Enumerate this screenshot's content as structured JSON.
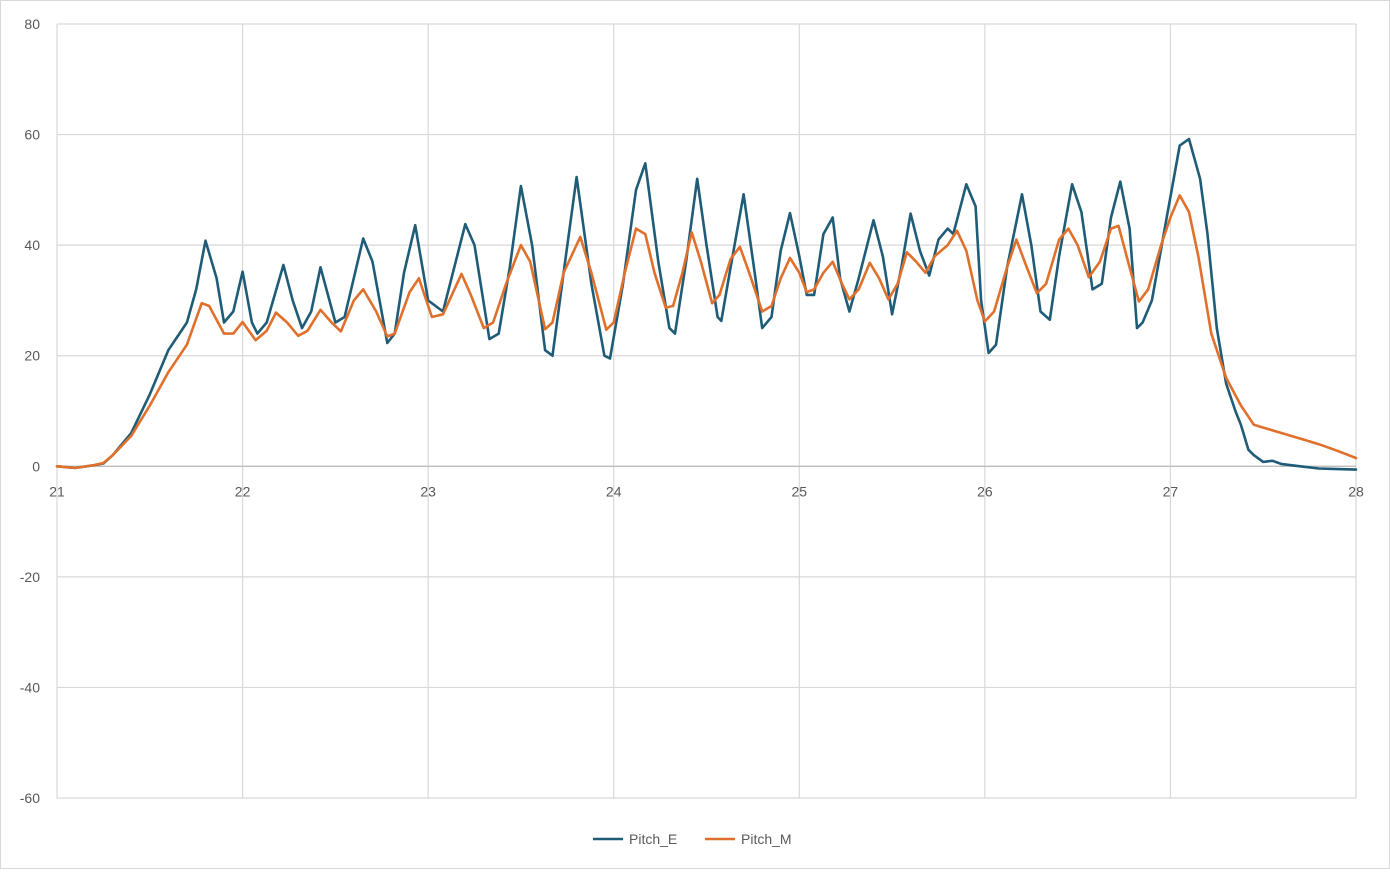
{
  "chart_data": {
    "type": "line",
    "title": "",
    "xlabel": "",
    "ylabel": "",
    "xlim": [
      21,
      28
    ],
    "ylim": [
      -60,
      80
    ],
    "x_ticks": [
      21,
      22,
      23,
      24,
      25,
      26,
      27,
      28
    ],
    "y_ticks": [
      80,
      60,
      40,
      20,
      0,
      -20,
      -40,
      -60
    ],
    "grid": true,
    "legend": "bottom-center",
    "series": [
      {
        "name": "Pitch_E",
        "color": "#1f5c77",
        "points": [
          [
            21.0,
            0
          ],
          [
            21.1,
            -0.3
          ],
          [
            21.2,
            0.2
          ],
          [
            21.25,
            0.5
          ],
          [
            21.3,
            2
          ],
          [
            21.4,
            6
          ],
          [
            21.5,
            13
          ],
          [
            21.6,
            21
          ],
          [
            21.7,
            26
          ],
          [
            21.75,
            32
          ],
          [
            21.8,
            40.8
          ],
          [
            21.86,
            34
          ],
          [
            21.9,
            26
          ],
          [
            21.95,
            28
          ],
          [
            22.0,
            35.2
          ],
          [
            22.05,
            26
          ],
          [
            22.08,
            24
          ],
          [
            22.13,
            26
          ],
          [
            22.22,
            36.4
          ],
          [
            22.27,
            30
          ],
          [
            22.32,
            25
          ],
          [
            22.37,
            28
          ],
          [
            22.42,
            36
          ],
          [
            22.5,
            26
          ],
          [
            22.55,
            27
          ],
          [
            22.65,
            41.2
          ],
          [
            22.7,
            37
          ],
          [
            22.78,
            22.3
          ],
          [
            22.82,
            24
          ],
          [
            22.87,
            35
          ],
          [
            22.93,
            43.6
          ],
          [
            23.0,
            30
          ],
          [
            23.08,
            28
          ],
          [
            23.2,
            43.8
          ],
          [
            23.25,
            40
          ],
          [
            23.33,
            23
          ],
          [
            23.38,
            24
          ],
          [
            23.44,
            36
          ],
          [
            23.5,
            50.7
          ],
          [
            23.56,
            40
          ],
          [
            23.63,
            21
          ],
          [
            23.67,
            20
          ],
          [
            23.73,
            35
          ],
          [
            23.8,
            52.3
          ],
          [
            23.88,
            33
          ],
          [
            23.95,
            20
          ],
          [
            23.98,
            19.5
          ],
          [
            24.05,
            33
          ],
          [
            24.12,
            50
          ],
          [
            24.17,
            54.8
          ],
          [
            24.24,
            37
          ],
          [
            24.3,
            25
          ],
          [
            24.33,
            24
          ],
          [
            24.39,
            37
          ],
          [
            24.45,
            52
          ],
          [
            24.5,
            40
          ],
          [
            24.56,
            27
          ],
          [
            24.58,
            26.3
          ],
          [
            24.63,
            36
          ],
          [
            24.7,
            49.2
          ],
          [
            24.76,
            35
          ],
          [
            24.8,
            25
          ],
          [
            24.85,
            27
          ],
          [
            24.9,
            39
          ],
          [
            24.95,
            45.8
          ],
          [
            25.0,
            38
          ],
          [
            25.04,
            31
          ],
          [
            25.08,
            31
          ],
          [
            25.13,
            42
          ],
          [
            25.18,
            45
          ],
          [
            25.22,
            34
          ],
          [
            25.27,
            28
          ],
          [
            25.32,
            34
          ],
          [
            25.4,
            44.5
          ],
          [
            25.45,
            38
          ],
          [
            25.5,
            27.5
          ],
          [
            25.55,
            36
          ],
          [
            25.6,
            45.7
          ],
          [
            25.65,
            39
          ],
          [
            25.7,
            34.5
          ],
          [
            25.75,
            41
          ],
          [
            25.8,
            43
          ],
          [
            25.83,
            42
          ],
          [
            25.9,
            51
          ],
          [
            25.95,
            47
          ],
          [
            25.98,
            30
          ],
          [
            26.02,
            20.5
          ],
          [
            26.06,
            22
          ],
          [
            26.12,
            36
          ],
          [
            26.2,
            49.2
          ],
          [
            26.25,
            40
          ],
          [
            26.3,
            28
          ],
          [
            26.35,
            26.5
          ],
          [
            26.4,
            38
          ],
          [
            26.47,
            51
          ],
          [
            26.52,
            46
          ],
          [
            26.58,
            32
          ],
          [
            26.63,
            33
          ],
          [
            26.68,
            45
          ],
          [
            26.73,
            51.5
          ],
          [
            26.78,
            43
          ],
          [
            26.82,
            25
          ],
          [
            26.85,
            26
          ],
          [
            26.9,
            30
          ],
          [
            26.98,
            45
          ],
          [
            27.05,
            58
          ],
          [
            27.1,
            59.2
          ],
          [
            27.16,
            52
          ],
          [
            27.2,
            42
          ],
          [
            27.25,
            25
          ],
          [
            27.3,
            15
          ],
          [
            27.35,
            10
          ],
          [
            27.38,
            7.5
          ],
          [
            27.42,
            3
          ],
          [
            27.45,
            2
          ],
          [
            27.5,
            0.8
          ],
          [
            27.55,
            1
          ],
          [
            27.6,
            0.4
          ],
          [
            27.7,
            0
          ],
          [
            27.8,
            -0.4
          ],
          [
            27.9,
            -0.5
          ],
          [
            28.0,
            -0.6
          ]
        ]
      },
      {
        "name": "Pitch_M",
        "color": "#e0702c",
        "points": [
          [
            21.0,
            0
          ],
          [
            21.1,
            -0.3
          ],
          [
            21.2,
            0.2
          ],
          [
            21.25,
            0.6
          ],
          [
            21.3,
            2
          ],
          [
            21.4,
            5.5
          ],
          [
            21.5,
            11
          ],
          [
            21.6,
            17
          ],
          [
            21.7,
            22
          ],
          [
            21.78,
            29.5
          ],
          [
            21.82,
            29
          ],
          [
            21.9,
            24
          ],
          [
            21.95,
            24
          ],
          [
            22.0,
            26.1
          ],
          [
            22.07,
            22.8
          ],
          [
            22.13,
            24.5
          ],
          [
            22.18,
            27.8
          ],
          [
            22.24,
            26
          ],
          [
            22.3,
            23.6
          ],
          [
            22.35,
            24.5
          ],
          [
            22.42,
            28.3
          ],
          [
            22.48,
            26
          ],
          [
            22.53,
            24.4
          ],
          [
            22.6,
            30
          ],
          [
            22.65,
            32
          ],
          [
            22.72,
            28
          ],
          [
            22.78,
            23.5
          ],
          [
            22.82,
            24
          ],
          [
            22.9,
            31.5
          ],
          [
            22.95,
            34
          ],
          [
            23.02,
            27
          ],
          [
            23.08,
            27.5
          ],
          [
            23.18,
            34.8
          ],
          [
            23.23,
            31
          ],
          [
            23.3,
            25
          ],
          [
            23.35,
            26
          ],
          [
            23.42,
            33
          ],
          [
            23.5,
            40
          ],
          [
            23.55,
            37
          ],
          [
            23.63,
            24.8
          ],
          [
            23.67,
            26
          ],
          [
            23.73,
            35
          ],
          [
            23.82,
            41.5
          ],
          [
            23.88,
            35
          ],
          [
            23.96,
            24.7
          ],
          [
            24.0,
            26
          ],
          [
            24.06,
            35
          ],
          [
            24.12,
            43
          ],
          [
            24.17,
            42
          ],
          [
            24.22,
            35
          ],
          [
            24.28,
            28.7
          ],
          [
            24.32,
            29
          ],
          [
            24.37,
            35
          ],
          [
            24.42,
            42.3
          ],
          [
            24.47,
            37
          ],
          [
            24.53,
            29.5
          ],
          [
            24.57,
            31
          ],
          [
            24.63,
            37.5
          ],
          [
            24.68,
            39.7
          ],
          [
            24.73,
            35
          ],
          [
            24.8,
            28
          ],
          [
            24.85,
            29
          ],
          [
            24.9,
            34
          ],
          [
            24.95,
            37.7
          ],
          [
            25.0,
            35
          ],
          [
            25.04,
            31.5
          ],
          [
            25.08,
            32
          ],
          [
            25.13,
            35
          ],
          [
            25.18,
            37
          ],
          [
            25.23,
            33
          ],
          [
            25.27,
            30.2
          ],
          [
            25.32,
            32
          ],
          [
            25.38,
            36.8
          ],
          [
            25.43,
            34
          ],
          [
            25.48,
            30.2
          ],
          [
            25.53,
            33
          ],
          [
            25.58,
            38.7
          ],
          [
            25.63,
            37
          ],
          [
            25.68,
            35
          ],
          [
            25.73,
            38
          ],
          [
            25.8,
            40
          ],
          [
            25.85,
            42.6
          ],
          [
            25.9,
            39
          ],
          [
            25.96,
            30
          ],
          [
            26.0,
            26.2
          ],
          [
            26.05,
            28
          ],
          [
            26.12,
            36
          ],
          [
            26.17,
            41
          ],
          [
            26.22,
            36.5
          ],
          [
            26.28,
            31.3
          ],
          [
            26.33,
            33
          ],
          [
            26.4,
            41
          ],
          [
            26.45,
            43
          ],
          [
            26.5,
            40
          ],
          [
            26.56,
            34.2
          ],
          [
            26.62,
            37
          ],
          [
            26.68,
            43
          ],
          [
            26.72,
            43.5
          ],
          [
            26.78,
            36
          ],
          [
            26.83,
            29.8
          ],
          [
            26.88,
            32
          ],
          [
            26.95,
            40
          ],
          [
            27.0,
            45
          ],
          [
            27.05,
            49
          ],
          [
            27.1,
            46
          ],
          [
            27.15,
            38
          ],
          [
            27.22,
            24
          ],
          [
            27.3,
            16
          ],
          [
            27.38,
            11
          ],
          [
            27.45,
            7.5
          ],
          [
            27.5,
            7
          ],
          [
            27.6,
            6
          ],
          [
            27.7,
            5
          ],
          [
            27.8,
            4
          ],
          [
            27.9,
            2.8
          ],
          [
            28.0,
            1.5
          ]
        ]
      }
    ]
  }
}
